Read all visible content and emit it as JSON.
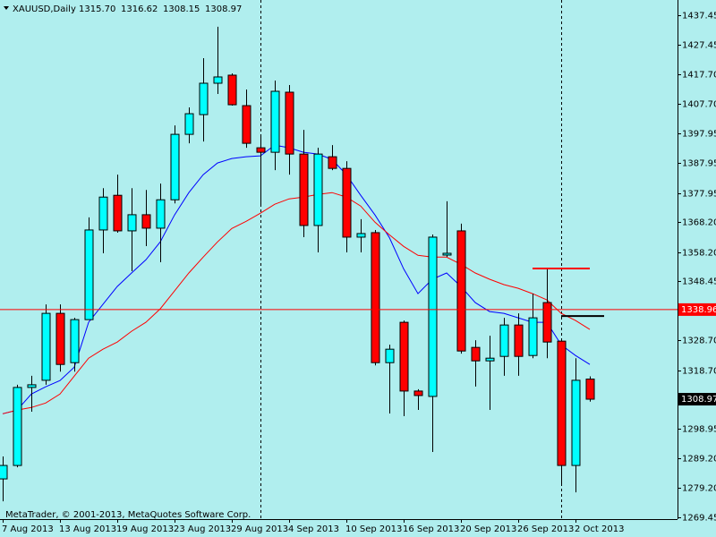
{
  "chart_data": {
    "type": "candlestick",
    "symbol": "XAUUSD,Daily",
    "header_ohlc": [
      "1315.70",
      "1316.62",
      "1308.15",
      "1308.97"
    ],
    "copyright": "MetaTrader, © 2001-2013, MetaQuotes Software Corp.",
    "categories": [
      "7 Aug 2013",
      null,
      null,
      null,
      "13 Aug 2013",
      null,
      null,
      null,
      "19 Aug 2013",
      null,
      null,
      null,
      "23 Aug 2013",
      null,
      null,
      null,
      "29 Aug 2013",
      null,
      null,
      null,
      "4 Sep 2013",
      null,
      null,
      null,
      "10 Sep 2013",
      null,
      null,
      null,
      "16 Sep 2013",
      null,
      null,
      null,
      "20 Sep 2013",
      null,
      null,
      null,
      "26 Sep 2013",
      null,
      null,
      null,
      "2 Oct 2013",
      null
    ],
    "open": [
      1282.3,
      1286.8,
      1312.9,
      1315.3,
      1337.7,
      1321.2,
      1335.6,
      1365.6,
      1377.2,
      1365.3,
      1370.7,
      1366.2,
      1375.7,
      1397.6,
      1404.2,
      1414.7,
      1417.4,
      1407.2,
      1393.1,
      1391.6,
      1411.7,
      1391.0,
      1367.1,
      1390.1,
      1386.2,
      1363.2,
      1364.7,
      1321.2,
      1334.7,
      1311.7,
      1309.9,
      1357.2,
      1365.3,
      1326.3,
      1321.8,
      1323.3,
      1333.8,
      1323.6,
      1341.3,
      1328.4,
      1286.8,
      1315.7
    ],
    "high": [
      1289.8,
      1313.8,
      1316.8,
      1340.7,
      1340.7,
      1336.2,
      1369.8,
      1379.6,
      1384.1,
      1379.6,
      1379.0,
      1381.1,
      1400.6,
      1406.6,
      1423.1,
      1433.6,
      1418.0,
      1412.6,
      1397.6,
      1415.6,
      1414.1,
      1399.1,
      1393.1,
      1394.0,
      1388.6,
      1369.2,
      1365.6,
      1327.2,
      1335.3,
      1312.3,
      1364.1,
      1375.2,
      1367.7,
      1328.7,
      1330.2,
      1336.2,
      1337.7,
      1344.3,
      1352.7,
      1328.7,
      1322.7,
      1316.62
    ],
    "low": [
      1274.8,
      1286.2,
      1304.8,
      1313.8,
      1318.2,
      1318.2,
      1335.6,
      1357.8,
      1364.7,
      1351.8,
      1360.2,
      1354.8,
      1374.5,
      1394.6,
      1395.2,
      1411.1,
      1407.2,
      1393.1,
      1373.6,
      1385.6,
      1384.1,
      1363.2,
      1358.1,
      1385.6,
      1358.1,
      1358.1,
      1320.3,
      1304.2,
      1303.3,
      1305.4,
      1291.3,
      1356.6,
      1324.2,
      1313.2,
      1305.4,
      1316.8,
      1316.8,
      1322.7,
      1322.7,
      1280.8,
      1277.8,
      1308.15
    ],
    "close": [
      1286.8,
      1312.9,
      1313.8,
      1337.7,
      1320.6,
      1335.6,
      1365.6,
      1376.6,
      1365.3,
      1370.7,
      1366.2,
      1375.7,
      1397.6,
      1404.5,
      1414.7,
      1416.8,
      1407.5,
      1394.6,
      1391.6,
      1412.0,
      1391.0,
      1367.1,
      1391.0,
      1386.2,
      1363.2,
      1364.4,
      1321.2,
      1325.7,
      1311.7,
      1310.2,
      1363.2,
      1357.8,
      1325.1,
      1321.8,
      1322.7,
      1333.8,
      1323.3,
      1336.2,
      1328.1,
      1286.8,
      1315.3,
      1308.97
    ],
    "bull_color": "#00ffff",
    "bear_color": "#ff0000",
    "lines": [
      {
        "color": "#0000ff",
        "values": [
          1304.1,
          1305.3,
          1310.7,
          1313.1,
          1315.2,
          1319.7,
          1334.7,
          1340.7,
          1346.7,
          1351.2,
          1355.6,
          1361.6,
          1370.6,
          1378.1,
          1384.1,
          1388.0,
          1389.5,
          1390.1,
          1390.4,
          1394.0,
          1393.1,
          1391.6,
          1391.0,
          1389.2,
          1384.1,
          1377.2,
          1370.6,
          1363.1,
          1352.6,
          1344.3,
          1349.1,
          1351.2,
          1346.7,
          1341.3,
          1338.3,
          1337.7,
          1336.2,
          1334.7,
          1334.7,
          1327.2,
          1323.6,
          1320.6
        ]
      },
      {
        "color": "#ff0000",
        "values": [
          1304.1,
          1305.3,
          1306.2,
          1307.7,
          1310.7,
          1316.7,
          1322.7,
          1325.7,
          1328.1,
          1331.7,
          1334.7,
          1339.2,
          1345.2,
          1351.2,
          1356.5,
          1361.6,
          1366.1,
          1368.5,
          1371.2,
          1374.2,
          1376.0,
          1376.6,
          1377.5,
          1378.1,
          1376.6,
          1373.6,
          1368.2,
          1364.0,
          1360.1,
          1357.1,
          1356.5,
          1356.5,
          1354.1,
          1351.2,
          1349.1,
          1347.3,
          1346.1,
          1344.3,
          1342.2,
          1337.7,
          1335.3,
          1332.3
        ]
      }
    ],
    "price_line": {
      "value": 1338.96,
      "color": "#ff0000"
    },
    "bid": 1308.97,
    "segments": [
      {
        "value": 1352.7,
        "color": "#ff0000",
        "start": 37,
        "end": 41
      },
      {
        "value": 1336.8,
        "color": "#000000",
        "start": 39,
        "end": 42
      }
    ],
    "separators": [
      18,
      39
    ],
    "ylim": [
      1268.85,
      1442.55
    ],
    "yticks": [
      {
        "value": 1437.45,
        "label": "1437.45"
      },
      {
        "value": 1427.45,
        "label": "1427.45"
      },
      {
        "value": 1417.7,
        "label": "1417.70"
      },
      {
        "value": 1407.7,
        "label": "1407.70"
      },
      {
        "value": 1397.95,
        "label": "1397.95"
      },
      {
        "value": 1387.95,
        "label": "1387.95"
      },
      {
        "value": 1377.95,
        "label": "1377.95"
      },
      {
        "value": 1368.2,
        "label": "1368.20"
      },
      {
        "value": 1358.2,
        "label": "1358.20"
      },
      {
        "value": 1348.45,
        "label": "1348.45"
      },
      {
        "value": 1328.7,
        "label": "1328.70"
      },
      {
        "value": 1318.7,
        "label": "1318.70"
      },
      {
        "value": 1298.95,
        "label": "1298.95"
      },
      {
        "value": 1289.2,
        "label": "1289.20"
      },
      {
        "value": 1279.2,
        "label": "1279.20"
      },
      {
        "value": 1269.45,
        "label": "1269.45"
      }
    ]
  }
}
